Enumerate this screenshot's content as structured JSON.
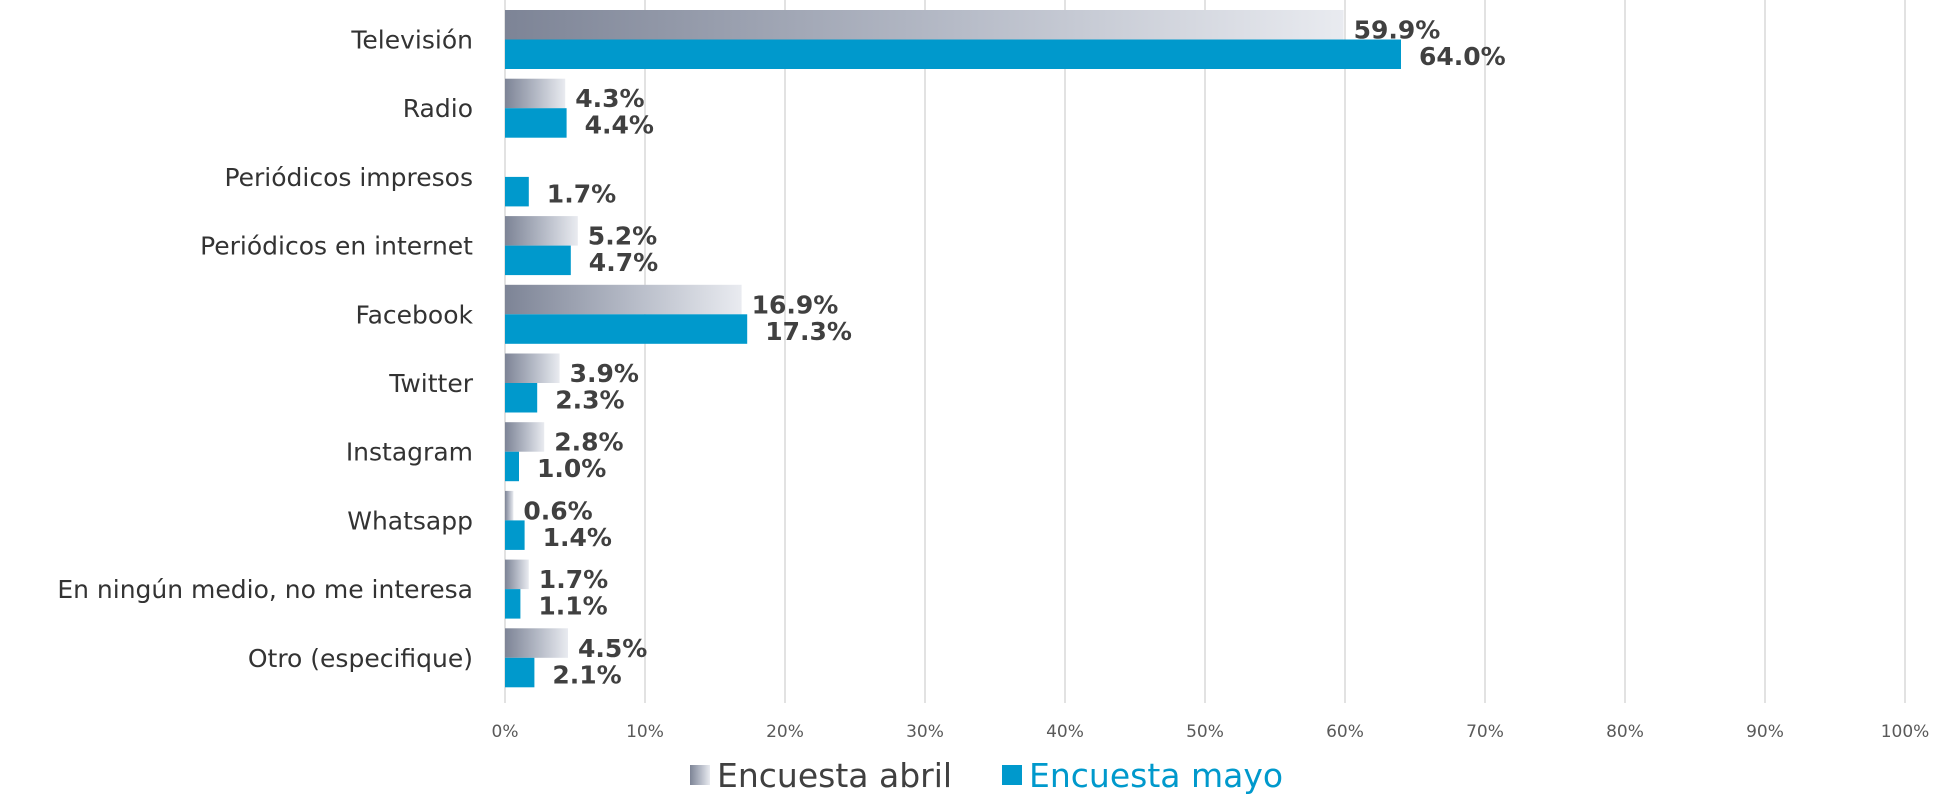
{
  "chart_data": {
    "type": "bar",
    "orientation": "horizontal",
    "title": "",
    "xlabel": "",
    "ylabel": "",
    "categories": [
      "Televisión",
      "Radio",
      "Periódicos impresos",
      "Periódicos en internet",
      "Facebook",
      "Twitter",
      "Instagram",
      "Whatsapp",
      "En ningún medio, no me interesa",
      "Otro (especifique)"
    ],
    "series": [
      {
        "name": "Encuesta abril",
        "color": "#b0b6c4",
        "values": [
          59.9,
          4.3,
          null,
          5.2,
          16.9,
          3.9,
          2.8,
          0.6,
          1.7,
          4.5
        ],
        "labels": [
          "59.9%",
          "4.3%",
          "",
          "5.2%",
          "16.9%",
          "3.9%",
          "2.8%",
          "0.6%",
          "1.7%",
          "4.5%"
        ]
      },
      {
        "name": "Encuesta mayo",
        "color": "#0099cc",
        "values": [
          64.0,
          4.4,
          1.7,
          4.7,
          17.3,
          2.3,
          1.0,
          1.4,
          1.1,
          2.1
        ],
        "labels": [
          "64.0%",
          "4.4%",
          "1.7%",
          "4.7%",
          "17.3%",
          "2.3%",
          "1.0%",
          "1.4%",
          "1.1%",
          "2.1%"
        ]
      }
    ],
    "xlim": [
      0,
      100
    ],
    "xticks": [
      0,
      10,
      20,
      30,
      40,
      50,
      60,
      70,
      80,
      90,
      100
    ],
    "xtick_labels": [
      "0%",
      "10%",
      "20%",
      "30%",
      "40%",
      "50%",
      "60%",
      "70%",
      "80%",
      "90%",
      "100%"
    ],
    "grid": true,
    "legend_position": "bottom-center"
  }
}
